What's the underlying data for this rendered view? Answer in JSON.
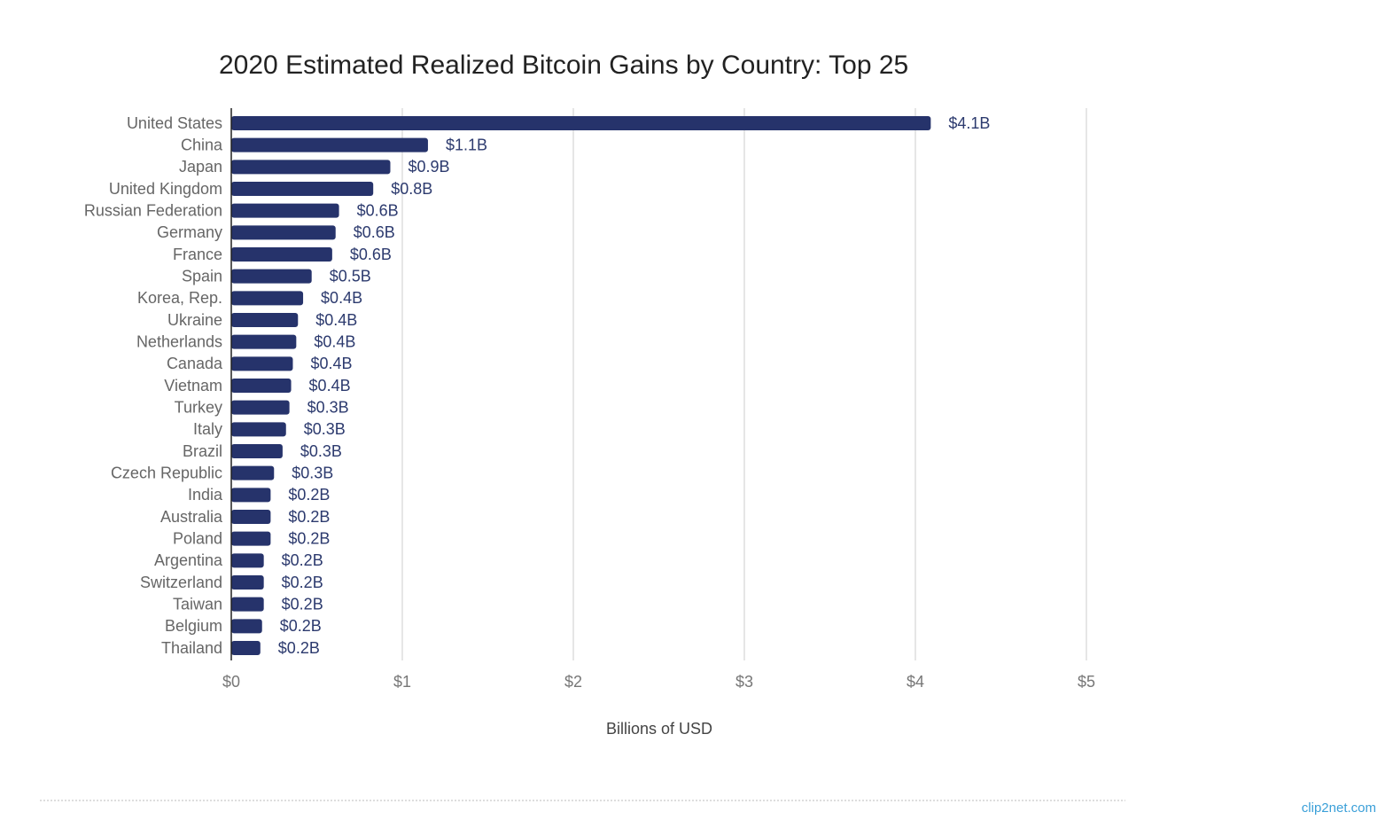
{
  "chart_data": {
    "type": "hbar",
    "title": "2020 Estimated Realized Bitcoin Gains by Country: Top 25",
    "categories": [
      "United States",
      "China",
      "Japan",
      "United Kingdom",
      "Russian Federation",
      "Germany",
      "France",
      "Spain",
      "Korea, Rep.",
      "Ukraine",
      "Netherlands",
      "Canada",
      "Vietnam",
      "Turkey",
      "Italy",
      "Brazil",
      "Czech Republic",
      "India",
      "Australia",
      "Poland",
      "Argentina",
      "Switzerland",
      "Taiwan",
      "Belgium",
      "Thailand"
    ],
    "values": [
      4.09,
      1.15,
      0.93,
      0.83,
      0.63,
      0.61,
      0.59,
      0.47,
      0.42,
      0.39,
      0.38,
      0.36,
      0.35,
      0.34,
      0.32,
      0.3,
      0.25,
      0.23,
      0.23,
      0.23,
      0.19,
      0.19,
      0.19,
      0.18,
      0.17
    ],
    "value_labels": [
      "$4.1B",
      "$1.1B",
      "$0.9B",
      "$0.8B",
      "$0.6B",
      "$0.6B",
      "$0.6B",
      "$0.5B",
      "$0.4B",
      "$0.4B",
      "$0.4B",
      "$0.4B",
      "$0.4B",
      "$0.3B",
      "$0.3B",
      "$0.3B",
      "$0.3B",
      "$0.2B",
      "$0.2B",
      "$0.2B",
      "$0.2B",
      "$0.2B",
      "$0.2B",
      "$0.2B",
      "$0.2B"
    ],
    "color": "#26336b",
    "xlim": [
      0,
      5
    ],
    "xticks": [
      {
        "value": 0,
        "label": "$0"
      },
      {
        "value": 1,
        "label": "$1"
      },
      {
        "value": 2,
        "label": "$2"
      },
      {
        "value": 3,
        "label": "$3"
      },
      {
        "value": 4,
        "label": "$4"
      },
      {
        "value": 5,
        "label": "$5"
      }
    ],
    "xlabel": "Billions of USD",
    "grid": true,
    "watermark": "clip2net.com"
  }
}
